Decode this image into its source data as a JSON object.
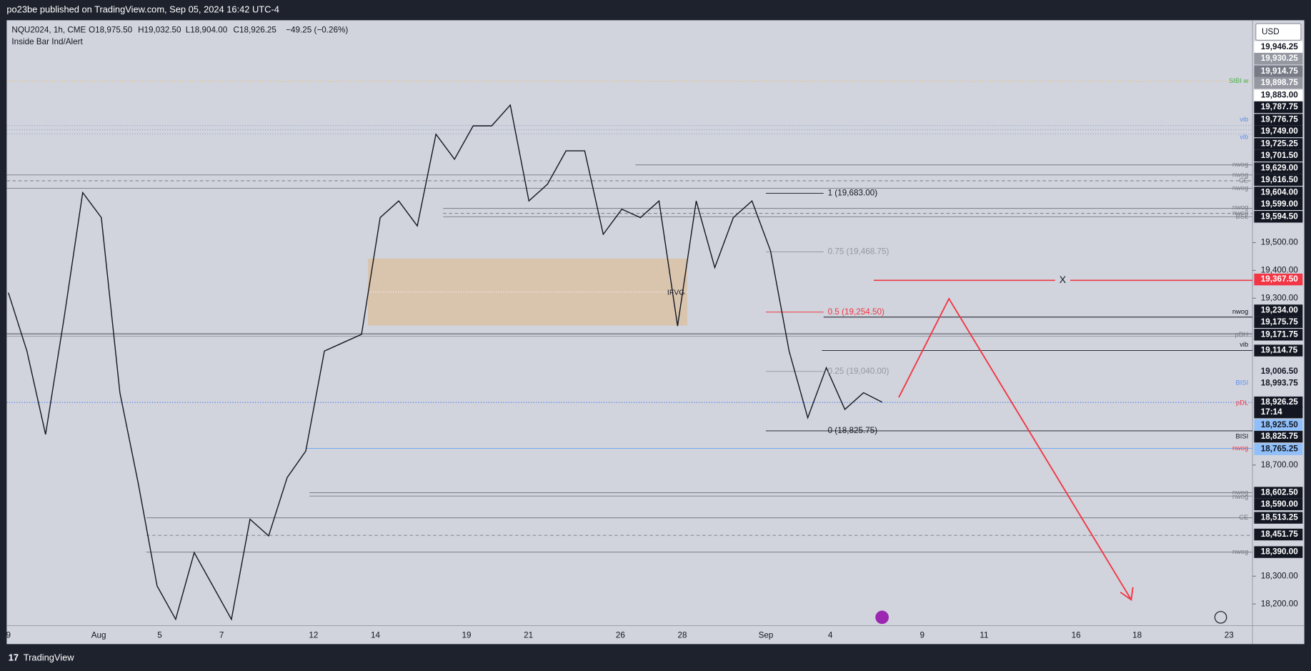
{
  "header": {
    "publisher": "po23be published on TradingView.com, Sep 05, 2024 16:42 UTC-4"
  },
  "legend": {
    "symbol": "NQU2024, 1h, CME",
    "open": "O18,975.50",
    "high": "H19,032.50",
    "low": "L18,904.00",
    "close": "C18,926.25",
    "change": "−49.25 (−0.26%)",
    "indicator": "Inside Bar Ind/Alert"
  },
  "chart_data": {
    "type": "line",
    "color": "#131722",
    "values": [
      19320,
      19110,
      18810,
      19230,
      19680,
      19590,
      18960,
      18630,
      18265,
      18145,
      18385,
      18265,
      18145,
      18505,
      18445,
      18655,
      18750,
      19110,
      19140,
      19170,
      19590,
      19650,
      19560,
      19890,
      19800,
      19920,
      19920,
      19995,
      19650,
      19710,
      19830,
      19830,
      19530,
      19620,
      19590,
      19650,
      19200,
      19650,
      19410,
      19590,
      19650,
      19470,
      19110,
      18870,
      19050,
      18900,
      18960,
      18926.25
    ],
    "ylim": [
      18122,
      20300
    ],
    "yticks": [
      {
        "value": 18200,
        "label": "18,200.00"
      },
      {
        "value": 18300,
        "label": "18,300.00"
      },
      {
        "value": 18700,
        "label": "18,700.00"
      },
      {
        "value": 19300,
        "label": "19,300.00"
      },
      {
        "value": 19400,
        "label": "19,400.00"
      },
      {
        "value": 19500,
        "label": "19,500.00"
      }
    ],
    "x_labels": [
      "9",
      "Aug",
      "5",
      "7",
      "12",
      "14",
      "19",
      "21",
      "26",
      "28",
      "Sep",
      "4",
      "9",
      "11",
      "16",
      "18",
      "23"
    ],
    "currency": "USD",
    "price_labels": [
      "19,946.25",
      "19,930.25",
      "19,914.75",
      "19,898.75",
      "19,883.00",
      "19,787.75",
      "19,776.75",
      "19,749.00",
      "19,725.25",
      "19,701.50",
      "19,629.00",
      "19,616.50",
      "19,604.00",
      "19,599.00",
      "19,594.50",
      "19,367.50",
      "19,234.00",
      "19,175.75",
      "19,171.75",
      "19,114.75",
      "19,006.50",
      "18,993.75",
      "18,926.25",
      "17:14",
      "18,925.50",
      "18,825.75",
      "18,765.25",
      "18,602.50",
      "18,590.00",
      "18,513.25",
      "18,451.75",
      "18,390.00"
    ],
    "level_tags": [
      "SIBI w",
      "vib",
      "vib",
      "nwog",
      "nwog",
      "CE",
      "nwog",
      "nwog",
      "nwog",
      "BSL",
      "nwog",
      "pDH",
      "vib",
      "BISI",
      "pDL",
      "BISI",
      "nwog",
      "nwog",
      "nwog",
      "CE",
      "nwog"
    ],
    "fib_labels": [
      "1 (19,683.00)",
      "0.75 (19,468.75)",
      "0.5 (19,254.50)",
      "0.25 (19,040.00)",
      "0 (18,825.75)"
    ],
    "zone_label": "IFVG",
    "target_label": "X"
  },
  "footer": {
    "brand": "TradingView"
  }
}
